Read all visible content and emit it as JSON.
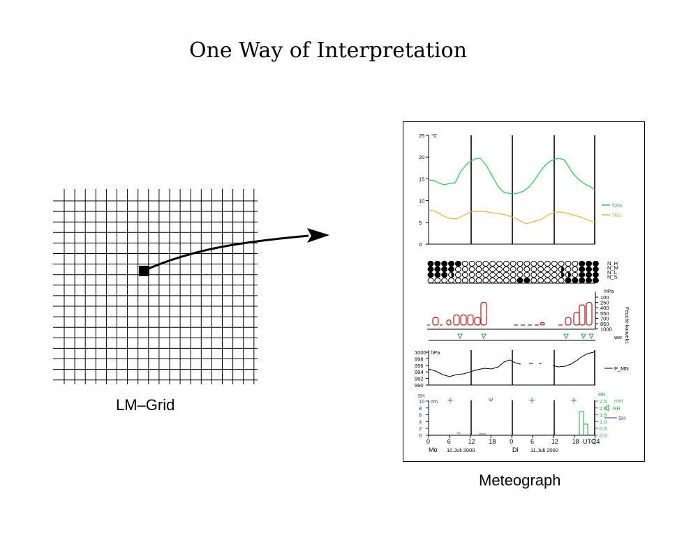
{
  "title": "One Way of Interpretation",
  "grid_caption": "LM–Grid",
  "meteograph_caption": "Meteograph",
  "meteograph": {
    "temp_unit": "°C",
    "temp_ticks": [
      "25",
      "20",
      "15",
      "10",
      "5",
      "0"
    ],
    "legend_t2m": "T2m",
    "legend_tdew": "TBS",
    "cloud_labels": [
      "N_H",
      "N_M",
      "N_L",
      "N_S"
    ],
    "cloud_unit": "hPa",
    "cloud_ticks": [
      "100",
      "250",
      "400",
      "550",
      "700",
      "850",
      "1000"
    ],
    "cloud_side_label": "Feucht-konvekt.",
    "ww_label": "ww",
    "pressure_unit": "hPa",
    "pressure_ticks": [
      "1000",
      "998",
      "996",
      "994",
      "992",
      "990"
    ],
    "legend_pmsl": "P_MN",
    "precip_left_label": "SH",
    "precip_left_ticks": [
      "10",
      "8",
      "6",
      "4",
      "2",
      "0"
    ],
    "precip_left_unit": "cm",
    "precip_right_label": "RR",
    "precip_right_unit": "mm",
    "precip_right_ticks": [
      "2.5",
      "2.0",
      "1.5",
      "1.0",
      "0.5",
      "0.0"
    ],
    "legend_rr": "RR",
    "legend_sh": "SH",
    "x_ticks": [
      "0",
      "6",
      "12",
      "18",
      "0",
      "6",
      "12",
      "18",
      "24"
    ],
    "x_unit": "UTC",
    "day1": "Mo",
    "date1": "10.Juli 2000",
    "day2": "Di",
    "date2": "11.Juli 2000",
    "colors": {
      "t2m": "#33cc55",
      "tdew": "#e8b830",
      "clouds": "#cc2222",
      "precip": "#22aa44",
      "snow": "#2233bb"
    }
  }
}
